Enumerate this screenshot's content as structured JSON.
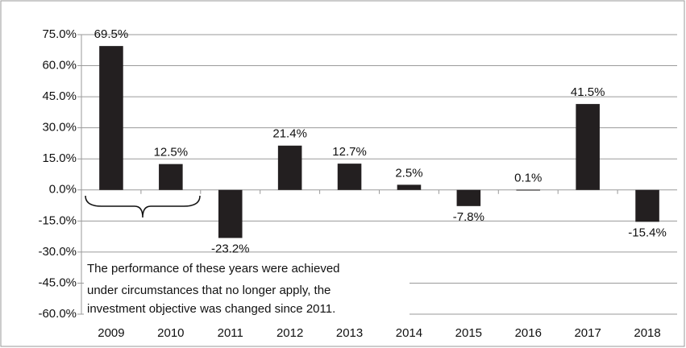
{
  "chart_data": {
    "type": "bar",
    "categories": [
      "2009",
      "2010",
      "2011",
      "2012",
      "2013",
      "2014",
      "2015",
      "2016",
      "2017",
      "2018"
    ],
    "values": [
      69.5,
      12.5,
      -23.2,
      21.4,
      12.7,
      2.5,
      -7.8,
      0.1,
      41.5,
      -15.4
    ],
    "value_labels": [
      "69.5%",
      "12.5%",
      "-23.2%",
      "21.4%",
      "12.7%",
      "2.5%",
      "-7.8%",
      "0.1%",
      "41.5%",
      "-15.4%"
    ],
    "color": "#231f20",
    "ylim": [
      -60,
      75
    ],
    "yticks": [
      {
        "value": 75,
        "label": "75.0%"
      },
      {
        "value": 60,
        "label": "60.0%"
      },
      {
        "value": 45,
        "label": "45.0%"
      },
      {
        "value": 30,
        "label": "30.0%"
      },
      {
        "value": 15,
        "label": "15.0%"
      },
      {
        "value": 0,
        "label": "0.0%"
      },
      {
        "value": -15,
        "label": "-15.0%"
      },
      {
        "value": -30,
        "label": "-30.0%"
      },
      {
        "value": -45,
        "label": "-45.0%"
      },
      {
        "value": -60,
        "label": "-60.0%"
      }
    ],
    "grid": true,
    "annotation": [
      "The performance of these years were achieved",
      "under circumstances that no longer apply, the",
      "investment objective was changed since 2011."
    ]
  }
}
